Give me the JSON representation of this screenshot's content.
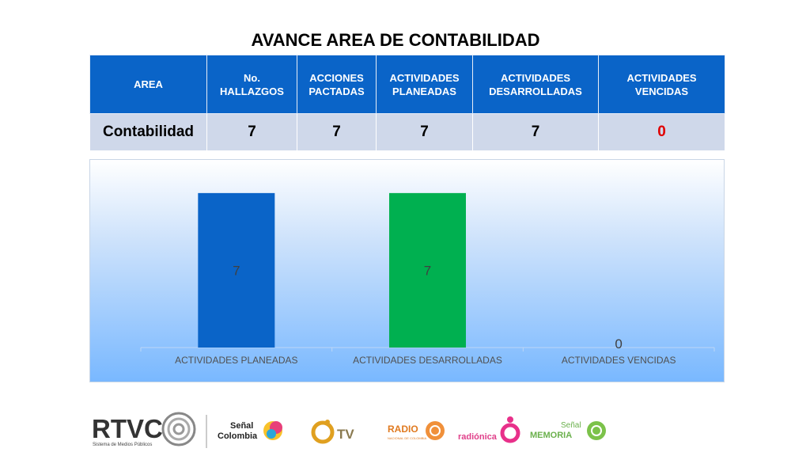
{
  "title": "AVANCE AREA DE CONTABILIDAD",
  "table": {
    "headers": [
      "AREA",
      "No.\nHALLAZGOS",
      "ACCIONES\nPACTADAS",
      "ACTIVIDADES\nPLANEADAS",
      "ACTIVIDADES\nDESARROLLADAS",
      "ACTIVIDADES\nVENCIDAS"
    ],
    "row": [
      "Contabilidad",
      "7",
      "7",
      "7",
      "7",
      "0"
    ]
  },
  "chart_data": {
    "type": "bar",
    "categories": [
      "ACTIVIDADES PLANEADAS",
      "ACTIVIDADES DESARROLLADAS",
      "ACTIVIDADES VENCIDAS"
    ],
    "values": [
      7,
      7,
      0
    ],
    "colors": [
      "#0a64c8",
      "#00b050",
      "#ffffff"
    ],
    "ylim": [
      0,
      8
    ],
    "grid": false,
    "legend": "none",
    "title": ""
  },
  "footer": {
    "rtvc": "RTVC",
    "rtvc_sub": "Sistema de Medios Públicos",
    "senal_colombia_top": "Señal",
    "senal_colombia_bottom": "Colombia",
    "tv": "TV",
    "radio_top": "RADIO",
    "radio_sub": "NACIONAL DE COLOMBIA",
    "radionica": "radiónica",
    "memoria_top": "Señal",
    "memoria_bottom": "MEMORIA"
  },
  "colors": {
    "header": "#0a64c8",
    "cell": "#cfd8ea",
    "bar_planeadas": "#0a64c8",
    "bar_desarrolladas": "#00b050",
    "zero_value": "#e00000"
  }
}
